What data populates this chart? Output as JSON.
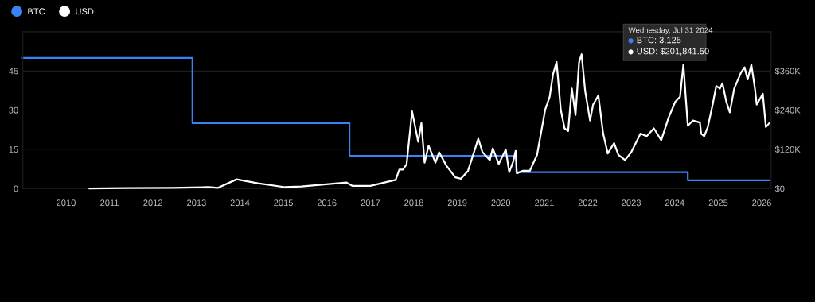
{
  "chart_data": {
    "type": "line",
    "legend": "top left",
    "grid": "y",
    "marker": "none",
    "line_style": "solid",
    "xlim": [
      "2009-01-03",
      "2026-03-20"
    ],
    "xticks": [
      {
        "value": "2010-01-01",
        "label": "2010"
      },
      {
        "value": "2011-01-01",
        "label": "2011"
      },
      {
        "value": "2012-01-01",
        "label": "2012"
      },
      {
        "value": "2013-01-01",
        "label": "2013"
      },
      {
        "value": "2014-01-01",
        "label": "2014"
      },
      {
        "value": "2015-01-01",
        "label": "2015"
      },
      {
        "value": "2016-01-01",
        "label": "2016"
      },
      {
        "value": "2017-01-01",
        "label": "2017"
      },
      {
        "value": "2018-01-01",
        "label": "2018"
      },
      {
        "value": "2019-01-01",
        "label": "2019"
      },
      {
        "value": "2020-01-01",
        "label": "2020"
      },
      {
        "value": "2021-01-01",
        "label": "2021"
      },
      {
        "value": "2022-01-01",
        "label": "2022"
      },
      {
        "value": "2023-01-01",
        "label": "2023"
      },
      {
        "value": "2024-01-01",
        "label": "2024"
      },
      {
        "value": "2025-01-01",
        "label": "2025"
      },
      {
        "value": "2026-01-01",
        "label": "2026"
      }
    ],
    "ylim": [
      0,
      60
    ],
    "yticks": [
      0,
      15,
      30,
      45
    ],
    "y2lim": [
      0,
      480000
    ],
    "y2ticks": [
      {
        "value": 0,
        "label": "$0"
      },
      {
        "value": 120000,
        "label": "$120K"
      },
      {
        "value": 240000,
        "label": "$240K"
      },
      {
        "value": 360000,
        "label": "$360K"
      }
    ],
    "series": [
      {
        "name": "BTC",
        "type": "step",
        "color": "#3b82f6",
        "x": [
          "2009-01-03",
          "2012-11-28",
          "2016-07-09",
          "2020-05-11",
          "2024-04-20",
          "2026-03-07"
        ],
        "values": [
          50,
          25,
          12.5,
          6.25,
          3.125,
          3.125
        ]
      },
      {
        "name": "USD",
        "axis": "y2",
        "color": "#ffffff",
        "x": [
          "2010-07-17",
          "2011-06-01",
          "2012-06-01",
          "2013-04-10",
          "2013-07-01",
          "2013-12-04",
          "2014-06-01",
          "2015-01-14",
          "2015-06-01",
          "2016-06-15",
          "2016-08-01",
          "2017-01-01",
          "2017-06-10",
          "2017-08-01",
          "2017-09-01",
          "2017-10-01",
          "2017-11-01",
          "2017-12-17",
          "2018-02-06",
          "2018-03-05",
          "2018-04-01",
          "2018-05-05",
          "2018-07-01",
          "2018-08-01",
          "2018-10-01",
          "2018-12-15",
          "2019-02-01",
          "2019-04-01",
          "2019-06-26",
          "2019-08-01",
          "2019-10-01",
          "2019-10-26",
          "2019-12-15",
          "2020-02-12",
          "2020-03-12",
          "2020-04-15",
          "2020-05-05",
          "2020-05-15",
          "2020-07-01",
          "2020-09-01",
          "2020-11-01",
          "2021-01-08",
          "2021-02-15",
          "2021-03-15",
          "2021-04-14",
          "2021-05-19",
          "2021-06-20",
          "2021-07-20",
          "2021-08-20",
          "2021-09-20",
          "2021-10-20",
          "2021-11-10",
          "2021-12-10",
          "2022-01-20",
          "2022-02-15",
          "2022-03-31",
          "2022-05-10",
          "2022-06-18",
          "2022-08-10",
          "2022-09-15",
          "2022-11-10",
          "2023-01-01",
          "2023-03-20",
          "2023-05-10",
          "2023-07-10",
          "2023-09-10",
          "2023-11-10",
          "2024-01-05",
          "2024-02-15",
          "2024-03-14",
          "2024-04-20",
          "2024-06-01",
          "2024-07-31",
          "2024-08-10",
          "2024-09-05",
          "2024-10-05",
          "2024-11-15",
          "2024-12-15",
          "2025-01-15",
          "2025-02-05",
          "2025-03-10",
          "2025-04-08",
          "2025-05-15",
          "2025-07-10",
          "2025-08-10",
          "2025-09-05",
          "2025-10-06",
          "2025-11-05",
          "2025-11-20",
          "2025-12-15",
          "2026-01-10",
          "2026-02-05",
          "2026-03-05"
        ],
        "values": [
          0,
          1000,
          2000,
          4000,
          2000,
          28000,
          16000,
          4000,
          6000,
          18000,
          8000,
          8000,
          22000,
          26000,
          58000,
          58000,
          74000,
          236000,
          143000,
          200000,
          79000,
          131000,
          79000,
          111000,
          70000,
          34000,
          30000,
          54000,
          152000,
          111000,
          87000,
          123000,
          75000,
          119000,
          50000,
          83000,
          115000,
          46000,
          54000,
          54000,
          103000,
          241000,
          281000,
          350000,
          387000,
          241000,
          184000,
          176000,
          306000,
          225000,
          387000,
          411000,
          298000,
          208000,
          257000,
          285000,
          168000,
          107000,
          139000,
          103000,
          87000,
          111000,
          168000,
          160000,
          184000,
          148000,
          216000,
          265000,
          281000,
          379000,
          192000,
          208000,
          202000,
          168000,
          160000,
          188000,
          257000,
          314000,
          306000,
          322000,
          265000,
          233000,
          306000,
          354000,
          371000,
          334000,
          379000,
          306000,
          257000,
          273000,
          290000,
          188000,
          200000
        ]
      }
    ],
    "annotations": [
      "Wednesday, Jul 31 2024",
      "BTC: 3.125",
      "USD: $201,841.50"
    ]
  }
}
